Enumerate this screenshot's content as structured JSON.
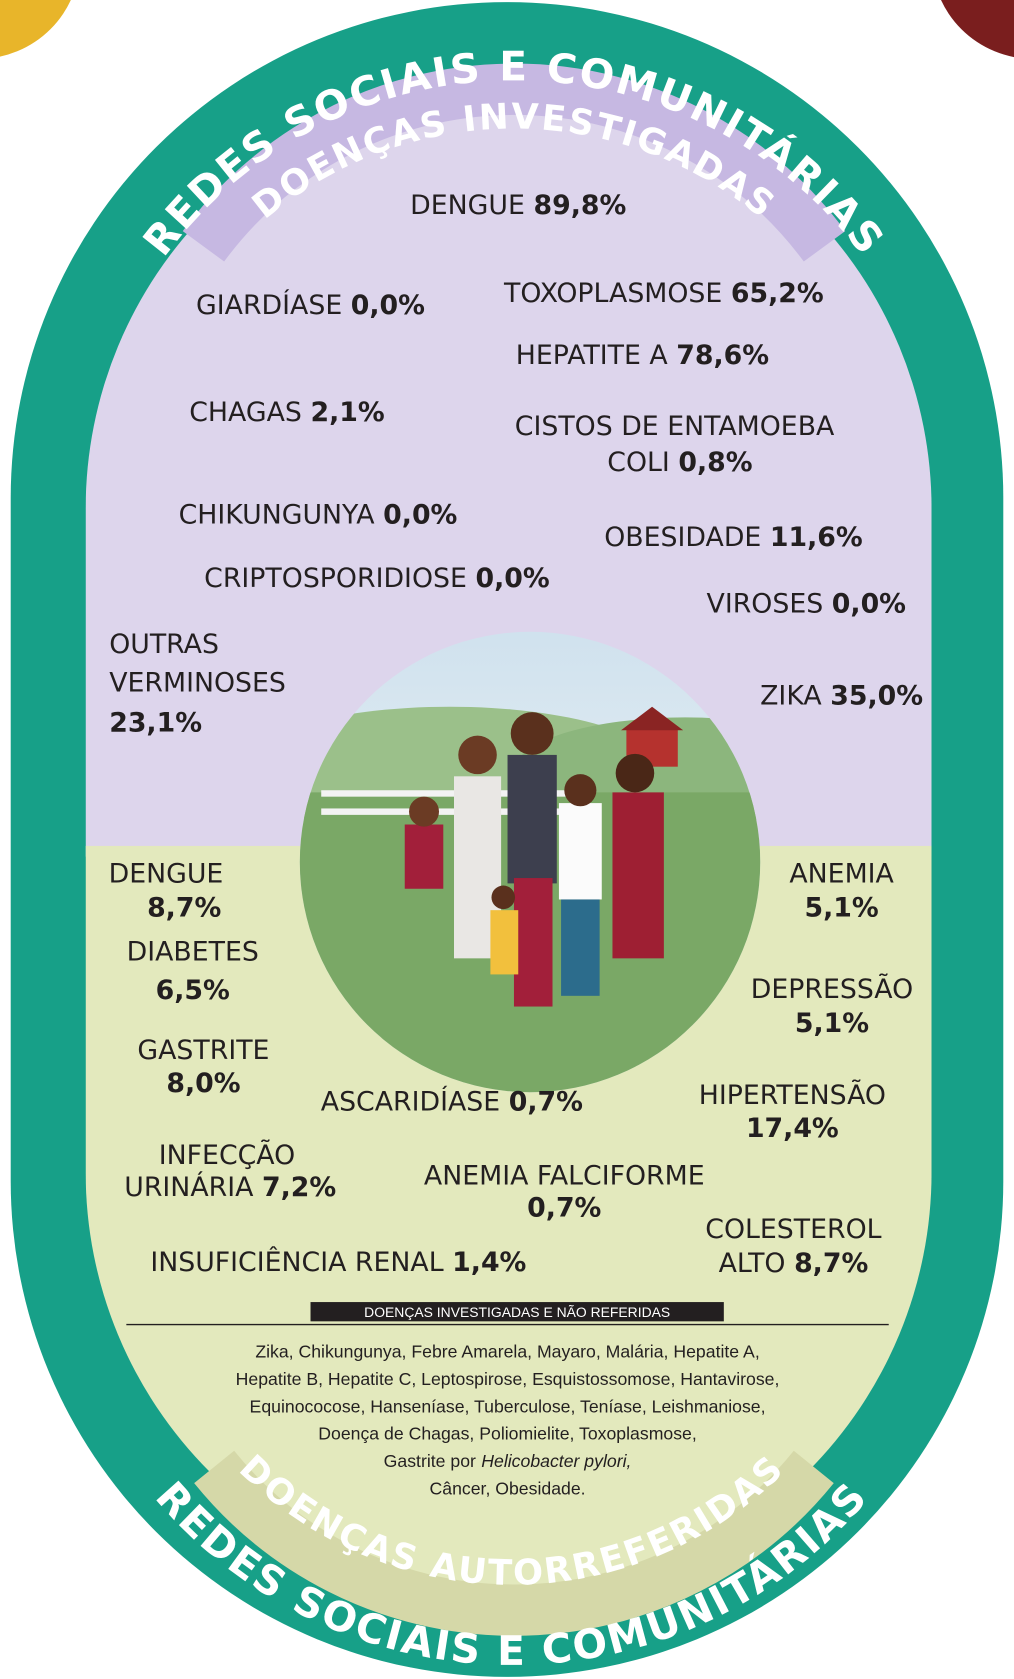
{
  "header": {
    "ring_title": "REDES SOCIAIS E COMUNITÁRIAS",
    "subtitle": "DOENÇAS INVESTIGADAS"
  },
  "investigated": [
    {
      "name": [
        "DENGUE"
      ],
      "value": "89,8%"
    },
    {
      "name": [
        "GIARDÍASE"
      ],
      "value": "0,0%"
    },
    {
      "name": [
        "TOXOPLASMOSE"
      ],
      "value": "65,2%"
    },
    {
      "name": [
        "HEPATITE A"
      ],
      "value": "78,6%"
    },
    {
      "name": [
        "CHAGAS"
      ],
      "value": "2,1%"
    },
    {
      "name": [
        "CISTOS DE ENTAMOEBA",
        "COLI"
      ],
      "value": "0,8%"
    },
    {
      "name": [
        "CHIKUNGUNYA"
      ],
      "value": "0,0%"
    },
    {
      "name": [
        "OBESIDADE"
      ],
      "value": "11,6%"
    },
    {
      "name": [
        "CRIPTOSPORIDIOSE"
      ],
      "value": "0,0%"
    },
    {
      "name": [
        "VIROSES"
      ],
      "value": "0,0%"
    },
    {
      "name": [
        "OUTRAS",
        "VERMINOSES"
      ],
      "value": "23,1%"
    },
    {
      "name": [
        "ZIKA"
      ],
      "value": "35,0%"
    }
  ],
  "self_reported": [
    {
      "name": [
        "DENGUE"
      ],
      "value": "8,7%"
    },
    {
      "name": [
        "DIABETES"
      ],
      "value": "6,5%"
    },
    {
      "name": [
        "GASTRITE"
      ],
      "value": "8,0%"
    },
    {
      "name": [
        "INFECÇÃO",
        "URINÁRIA"
      ],
      "value": "7,2%"
    },
    {
      "name": [
        "INSUFICIÊNCIA RENAL"
      ],
      "value": "1,4%"
    },
    {
      "name": [
        "ASCARIDÍASE"
      ],
      "value": "0,7%"
    },
    {
      "name": [
        "ANEMIA FALCIFORME"
      ],
      "value": "0,7%"
    },
    {
      "name": [
        "ANEMIA"
      ],
      "value": "5,1%"
    },
    {
      "name": [
        "DEPRESSÃO"
      ],
      "value": "5,1%"
    },
    {
      "name": [
        "HIPERTENSÃO"
      ],
      "value": "17,4%"
    },
    {
      "name": [
        "COLESTEROL",
        "ALTO"
      ],
      "value": "8,7%"
    }
  ],
  "note": {
    "title": "DOENÇAS INVESTIGADAS E NÃO REFERIDAS",
    "lines": [
      "Zika, Chikungunya, Febre Amarela, Mayaro, Malária, Hepatite A,",
      "Hepatite B, Hepatite C, Leptospirose, Esquistossomose, Hantavirose,",
      "Equinococose, Hanseníase, Tuberculose, Teníase, Leishmaniose,",
      "Doença de Chagas, Poliomielite, Toxoplasmose,"
    ],
    "italic_line": {
      "before": "Gastrite por",
      "italic": "Helicobacter pylori,"
    },
    "last_line": "Câncer, Obesidade."
  },
  "footer": {
    "subtitle": "DOENÇAS AUTORREFERIDAS",
    "ring_title": "REDES SOCIAIS E COMUNITÁRIAS"
  }
}
